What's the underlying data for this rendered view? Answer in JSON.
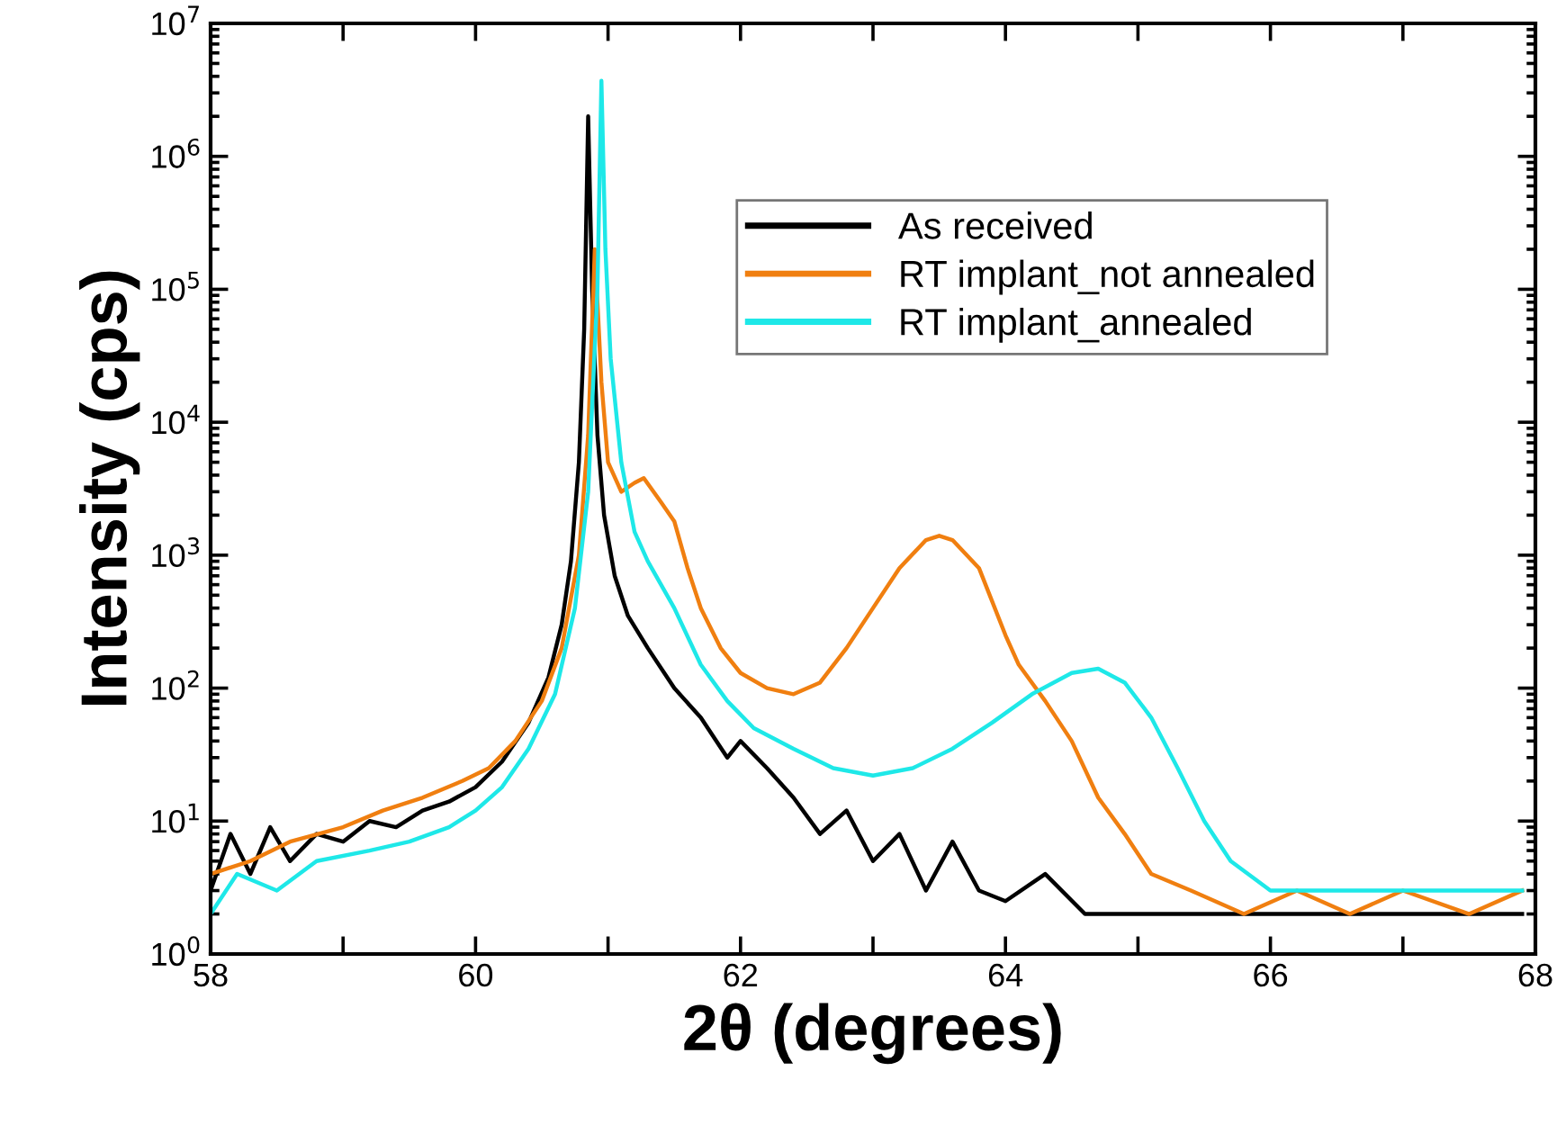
{
  "chart_data": {
    "type": "line",
    "xlabel": "2θ (degrees)",
    "ylabel": "Intensity (cps)",
    "log": "y",
    "grid": false,
    "legend": "top",
    "marker": "none",
    "line_style": "solid",
    "xlim": [
      58,
      68
    ],
    "xticks": [
      58,
      {
        "value": 59,
        "label": null
      },
      60,
      {
        "value": 61,
        "label": null
      },
      62,
      {
        "value": 63,
        "label": null
      },
      64,
      {
        "value": 65,
        "label": null
      },
      66,
      {
        "value": 67,
        "label": null
      },
      68
    ],
    "ylim": [
      1,
      10000000
    ],
    "yticks": [
      {
        "value": 1,
        "label": "10$^{0}$"
      },
      {
        "value": 10,
        "label": "10$^{1}$"
      },
      {
        "value": 100,
        "label": "10$^{2}$"
      },
      {
        "value": 1000,
        "label": "10$^{3}$"
      },
      {
        "value": 10000,
        "label": "10$^{4}$"
      },
      {
        "value": 100000,
        "label": "10$^{5}$"
      },
      {
        "value": 1000000,
        "label": "10$^{6}$"
      },
      {
        "value": 10000000,
        "label": "10$^{7}$"
      }
    ],
    "series": [
      {
        "name": "As received",
        "color": "#000000",
        "x": [
          58.0,
          58.15,
          58.3,
          58.45,
          58.6,
          58.8,
          59.0,
          59.2,
          59.4,
          59.6,
          59.8,
          60.0,
          60.2,
          60.4,
          60.55,
          60.65,
          60.72,
          60.78,
          60.82,
          60.85,
          60.88,
          60.92,
          60.97,
          61.05,
          61.15,
          61.3,
          61.5,
          61.7,
          61.9,
          62.0,
          62.2,
          62.4,
          62.6,
          62.8,
          63.0,
          63.2,
          63.4,
          63.6,
          63.8,
          64.0,
          64.3,
          64.6,
          65.0,
          65.5,
          66.0,
          66.5,
          67.0,
          67.5,
          67.9
        ],
        "values": [
          3,
          8,
          4,
          9,
          5,
          8,
          7,
          10,
          9,
          12,
          14,
          18,
          28,
          55,
          120,
          300,
          900,
          5000,
          50000,
          2000000,
          100000,
          8000,
          2000,
          700,
          350,
          200,
          100,
          60,
          30,
          40,
          25,
          15,
          8,
          12,
          5,
          8,
          3,
          7,
          3,
          2.5,
          4,
          2,
          2,
          2,
          2,
          2,
          2,
          2,
          2
        ]
      },
      {
        "name": "RT implant_not annealed",
        "color": "#f07f10",
        "x": [
          58.0,
          58.3,
          58.6,
          59.0,
          59.3,
          59.6,
          59.9,
          60.1,
          60.3,
          60.5,
          60.65,
          60.78,
          60.85,
          60.9,
          60.95,
          61.0,
          61.1,
          61.2,
          61.27,
          61.4,
          61.5,
          61.6,
          61.7,
          61.85,
          62.0,
          62.2,
          62.4,
          62.6,
          62.8,
          63.0,
          63.2,
          63.4,
          63.5,
          63.6,
          63.8,
          64.0,
          64.1,
          64.3,
          64.5,
          64.7,
          64.9,
          65.1,
          65.4,
          65.8,
          66.2,
          66.6,
          67.0,
          67.5,
          67.9
        ],
        "values": [
          4,
          5,
          7,
          9,
          12,
          15,
          20,
          25,
          40,
          80,
          200,
          1000,
          8000,
          200000,
          20000,
          5000,
          3000,
          3500,
          3800,
          2500,
          1800,
          800,
          400,
          200,
          130,
          100,
          90,
          110,
          200,
          400,
          800,
          1300,
          1400,
          1300,
          800,
          250,
          150,
          80,
          40,
          15,
          8,
          4,
          3,
          2,
          3,
          2,
          3,
          2,
          3
        ]
      },
      {
        "name": "RT implant_annealed",
        "color": "#1ee8e8",
        "x": [
          58.0,
          58.2,
          58.5,
          58.8,
          59.2,
          59.5,
          59.8,
          60.0,
          60.2,
          60.4,
          60.6,
          60.75,
          60.85,
          60.92,
          60.95,
          60.98,
          61.02,
          61.1,
          61.2,
          61.3,
          61.5,
          61.7,
          61.9,
          62.1,
          62.4,
          62.7,
          63.0,
          63.3,
          63.6,
          63.9,
          64.2,
          64.5,
          64.7,
          64.9,
          65.1,
          65.3,
          65.5,
          65.7,
          66.0,
          66.5,
          67.0,
          67.5,
          67.9
        ],
        "values": [
          2,
          4,
          3,
          5,
          6,
          7,
          9,
          12,
          18,
          35,
          90,
          400,
          3000,
          100000,
          3700000,
          200000,
          30000,
          5000,
          1500,
          900,
          400,
          150,
          80,
          50,
          35,
          25,
          22,
          25,
          35,
          55,
          90,
          130,
          140,
          110,
          60,
          25,
          10,
          5,
          3,
          3,
          3,
          3,
          3
        ]
      }
    ]
  }
}
